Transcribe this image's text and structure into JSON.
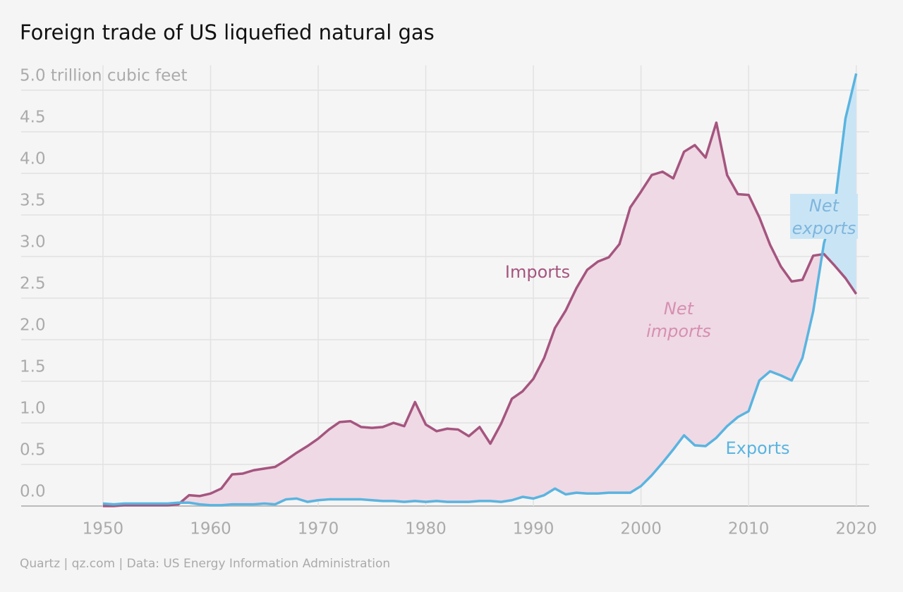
{
  "chart_data": {
    "type": "line",
    "title": "Foreign trade of US liquefied natural gas",
    "source": "Quartz | qz.com | Data: US Energy Information Administration",
    "x": [
      1950,
      1951,
      1952,
      1953,
      1954,
      1955,
      1956,
      1957,
      1958,
      1959,
      1960,
      1961,
      1962,
      1963,
      1964,
      1965,
      1966,
      1967,
      1968,
      1969,
      1970,
      1971,
      1972,
      1973,
      1974,
      1975,
      1976,
      1977,
      1978,
      1979,
      1980,
      1981,
      1982,
      1983,
      1984,
      1985,
      1986,
      1987,
      1988,
      1989,
      1990,
      1991,
      1992,
      1993,
      1994,
      1995,
      1996,
      1997,
      1998,
      1999,
      2000,
      2001,
      2002,
      2003,
      2004,
      2005,
      2006,
      2007,
      2008,
      2009,
      2010,
      2011,
      2012,
      2013,
      2014,
      2015,
      2016,
      2017,
      2018,
      2019,
      2020
    ],
    "series": [
      {
        "name": "Imports",
        "color": "#a5557f",
        "values": [
          0,
          0,
          0.01,
          0.01,
          0.01,
          0.01,
          0.01,
          0.02,
          0.13,
          0.12,
          0.15,
          0.21,
          0.38,
          0.39,
          0.43,
          0.45,
          0.47,
          0.55,
          0.64,
          0.72,
          0.81,
          0.92,
          1.01,
          1.02,
          0.95,
          0.94,
          0.95,
          1.0,
          0.96,
          1.25,
          0.98,
          0.9,
          0.93,
          0.92,
          0.84,
          0.95,
          0.75,
          0.99,
          1.29,
          1.38,
          1.53,
          1.78,
          2.14,
          2.35,
          2.62,
          2.84,
          2.94,
          2.99,
          3.15,
          3.59,
          3.78,
          3.98,
          4.02,
          3.94,
          4.26,
          4.34,
          4.19,
          4.61,
          3.98,
          3.75,
          3.74,
          3.47,
          3.14,
          2.88,
          2.7,
          2.72,
          3.01,
          3.03,
          2.89,
          2.74,
          2.55
        ]
      },
      {
        "name": "Exports",
        "color": "#5ab4e0",
        "values": [
          0.03,
          0.02,
          0.03,
          0.03,
          0.03,
          0.03,
          0.03,
          0.04,
          0.04,
          0.02,
          0.01,
          0.01,
          0.02,
          0.02,
          0.02,
          0.03,
          0.02,
          0.08,
          0.09,
          0.05,
          0.07,
          0.08,
          0.08,
          0.08,
          0.08,
          0.07,
          0.06,
          0.06,
          0.05,
          0.06,
          0.05,
          0.06,
          0.05,
          0.05,
          0.05,
          0.06,
          0.06,
          0.05,
          0.07,
          0.11,
          0.09,
          0.13,
          0.21,
          0.14,
          0.16,
          0.15,
          0.15,
          0.16,
          0.16,
          0.16,
          0.24,
          0.37,
          0.52,
          0.68,
          0.85,
          0.73,
          0.72,
          0.82,
          0.96,
          1.07,
          1.14,
          1.51,
          1.62,
          1.57,
          1.51,
          1.78,
          2.34,
          3.16,
          3.61,
          4.66,
          5.2
        ]
      }
    ],
    "fill_colors": {
      "net_imports": "#efd9e4",
      "net_exports": "#c9e5f5"
    },
    "annotations": [
      {
        "lines": [
          "Imports"
        ],
        "color": "#a5557f",
        "italic": false
      },
      {
        "lines": [
          "Net",
          "imports"
        ],
        "color": "#d68fb3",
        "italic": true
      },
      {
        "lines": [
          "Exports"
        ],
        "color": "#5ab4e0",
        "italic": false
      },
      {
        "lines": [
          "Net",
          "exports"
        ],
        "color": "#7fb5dd",
        "italic": true
      }
    ],
    "xlim": [
      1942.4,
      2021.2
    ],
    "xticks": [
      1950,
      1960,
      1970,
      1980,
      1990,
      2000,
      2010,
      2020
    ],
    "ylim": [
      0,
      5.3
    ],
    "yticks": [
      {
        "value": 0,
        "label": "0.0"
      },
      {
        "value": 0.5,
        "label": "0.5"
      },
      {
        "value": 1,
        "label": "1.0"
      },
      {
        "value": 1.5,
        "label": "1.5"
      },
      {
        "value": 2,
        "label": "2.0"
      },
      {
        "value": 2.5,
        "label": "2.5"
      },
      {
        "value": 3,
        "label": "3.0"
      },
      {
        "value": 3.5,
        "label": "3.5"
      },
      {
        "value": 4,
        "label": "4.0"
      },
      {
        "value": 4.5,
        "label": "4.5"
      },
      {
        "value": 5,
        "label": "5.0 trillion cubic feet"
      }
    ],
    "grid": true
  }
}
